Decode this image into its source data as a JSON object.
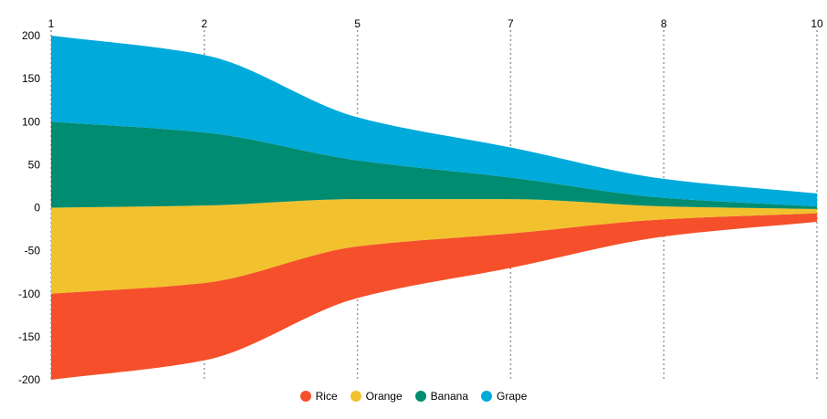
{
  "chart_data": {
    "type": "area",
    "subtype": "streamgraph",
    "x": [
      1,
      2,
      5,
      7,
      8,
      10
    ],
    "x_tick_labels": [
      "1",
      "2",
      "5",
      "7",
      "8",
      "10"
    ],
    "y_tick_labels": [
      "200",
      "150",
      "100",
      "50",
      "0",
      "-50",
      "-100",
      "-150",
      "-200"
    ],
    "ylim": [
      -200,
      200
    ],
    "grid": "vertical dotted",
    "legend_position": "bottom",
    "series": [
      {
        "name": "Rice",
        "color": "#f5502b",
        "values": [
          100,
          90,
          60,
          40,
          20,
          10
        ]
      },
      {
        "name": "Orange",
        "color": "#f2c12e",
        "values": [
          100,
          90,
          55,
          40,
          15,
          5
        ]
      },
      {
        "name": "Banana",
        "color": "#008c70",
        "values": [
          100,
          85,
          45,
          25,
          10,
          3
        ]
      },
      {
        "name": "Grape",
        "color": "#00aadb",
        "values": [
          100,
          90,
          50,
          35,
          22,
          15
        ]
      }
    ]
  }
}
